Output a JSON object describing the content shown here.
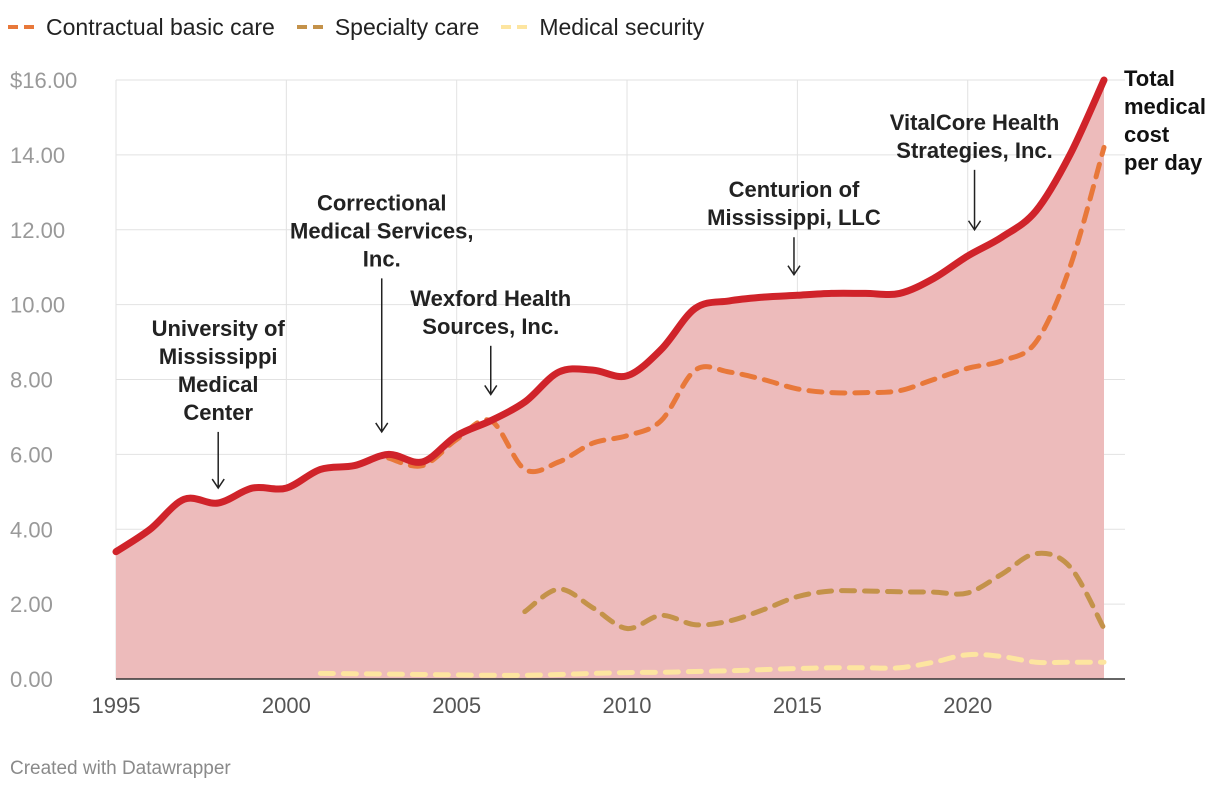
{
  "chart_data": {
    "type": "line",
    "xlim": [
      1995,
      2024
    ],
    "ylim": [
      0,
      16
    ],
    "x_ticks": [
      1995,
      2000,
      2005,
      2010,
      2015,
      2020
    ],
    "y_ticks": [
      {
        "value": 0,
        "label": "0.00"
      },
      {
        "value": 2,
        "label": "2.00"
      },
      {
        "value": 4,
        "label": "4.00"
      },
      {
        "value": 6,
        "label": "6.00"
      },
      {
        "value": 8,
        "label": "8.00"
      },
      {
        "value": 10,
        "label": "10.00"
      },
      {
        "value": 12,
        "label": "12.00"
      },
      {
        "value": 14,
        "label": "14.00"
      },
      {
        "value": 16,
        "label": "$16.00"
      }
    ],
    "grid": true,
    "legend_position": "top-left",
    "series": [
      {
        "name": "Total medical cost per day",
        "color": "#d0232a",
        "style": "solid-area",
        "end_label": [
          "Total",
          "medical",
          "cost",
          "per day"
        ],
        "x": [
          1995,
          1996,
          1997,
          1998,
          1999,
          2000,
          2001,
          2002,
          2003,
          2004,
          2005,
          2006,
          2007,
          2008,
          2009,
          2010,
          2011,
          2012,
          2013,
          2014,
          2015,
          2016,
          2017,
          2018,
          2019,
          2020,
          2021,
          2022,
          2023,
          2024
        ],
        "values": [
          3.4,
          4.0,
          4.8,
          4.7,
          5.1,
          5.1,
          5.6,
          5.7,
          6.0,
          5.8,
          6.5,
          6.9,
          7.4,
          8.2,
          8.25,
          8.1,
          8.8,
          9.9,
          10.1,
          10.2,
          10.25,
          10.3,
          10.3,
          10.3,
          10.7,
          11.3,
          11.8,
          12.5,
          14.0,
          16.0
        ]
      },
      {
        "name": "Contractual basic care",
        "color": "#e8783a",
        "style": "dashed",
        "x": [
          2003,
          2004,
          2005,
          2006,
          2007,
          2008,
          2009,
          2010,
          2011,
          2012,
          2013,
          2014,
          2015,
          2016,
          2017,
          2018,
          2019,
          2020,
          2021,
          2022,
          2023,
          2024
        ],
        "values": [
          5.9,
          5.7,
          6.4,
          6.9,
          5.6,
          5.8,
          6.3,
          6.5,
          6.9,
          8.25,
          8.2,
          8.0,
          7.75,
          7.65,
          7.65,
          7.7,
          8.0,
          8.3,
          8.5,
          9.0,
          11.0,
          14.2
        ]
      },
      {
        "name": "Specialty care",
        "color": "#c4924a",
        "style": "dashed",
        "x": [
          2007,
          2008,
          2009,
          2010,
          2011,
          2012,
          2013,
          2014,
          2015,
          2016,
          2017,
          2018,
          2019,
          2020,
          2021,
          2022,
          2023,
          2024
        ],
        "values": [
          1.8,
          2.4,
          1.9,
          1.35,
          1.7,
          1.45,
          1.55,
          1.85,
          2.2,
          2.35,
          2.35,
          2.33,
          2.32,
          2.3,
          2.8,
          3.35,
          3.0,
          1.35
        ]
      },
      {
        "name": "Medical security",
        "color": "#fde5a0",
        "style": "dashed",
        "x": [
          2001,
          2002,
          2003,
          2004,
          2005,
          2006,
          2007,
          2008,
          2009,
          2010,
          2011,
          2012,
          2013,
          2014,
          2015,
          2016,
          2017,
          2018,
          2019,
          2020,
          2021,
          2022,
          2023,
          2024
        ],
        "values": [
          0.15,
          0.14,
          0.13,
          0.12,
          0.11,
          0.1,
          0.1,
          0.12,
          0.15,
          0.17,
          0.18,
          0.2,
          0.22,
          0.25,
          0.28,
          0.3,
          0.3,
          0.3,
          0.45,
          0.65,
          0.6,
          0.45,
          0.45,
          0.45
        ]
      }
    ],
    "annotations": [
      {
        "lines": [
          "University of",
          "Mississippi",
          "Medical",
          "Center"
        ],
        "x": 1998,
        "arrow_top": 6.6,
        "arrow_bottom": 5.1
      },
      {
        "lines": [
          "Correctional",
          "Medical Services,",
          "Inc."
        ],
        "x": 2002.8,
        "arrow_top": 10.7,
        "arrow_bottom": 6.6
      },
      {
        "lines": [
          "Wexford Health",
          "Sources, Inc."
        ],
        "x": 2006,
        "arrow_top": 8.9,
        "arrow_bottom": 7.6
      },
      {
        "lines": [
          "Centurion of",
          "Mississippi, LLC"
        ],
        "x": 2014.9,
        "arrow_top": 11.8,
        "arrow_bottom": 10.8
      },
      {
        "lines": [
          "VitalCore Health",
          "Strategies, Inc."
        ],
        "x": 2020.2,
        "arrow_top": 13.6,
        "arrow_bottom": 12.0
      }
    ]
  },
  "footer": {
    "credit": "Created with Datawrapper"
  }
}
